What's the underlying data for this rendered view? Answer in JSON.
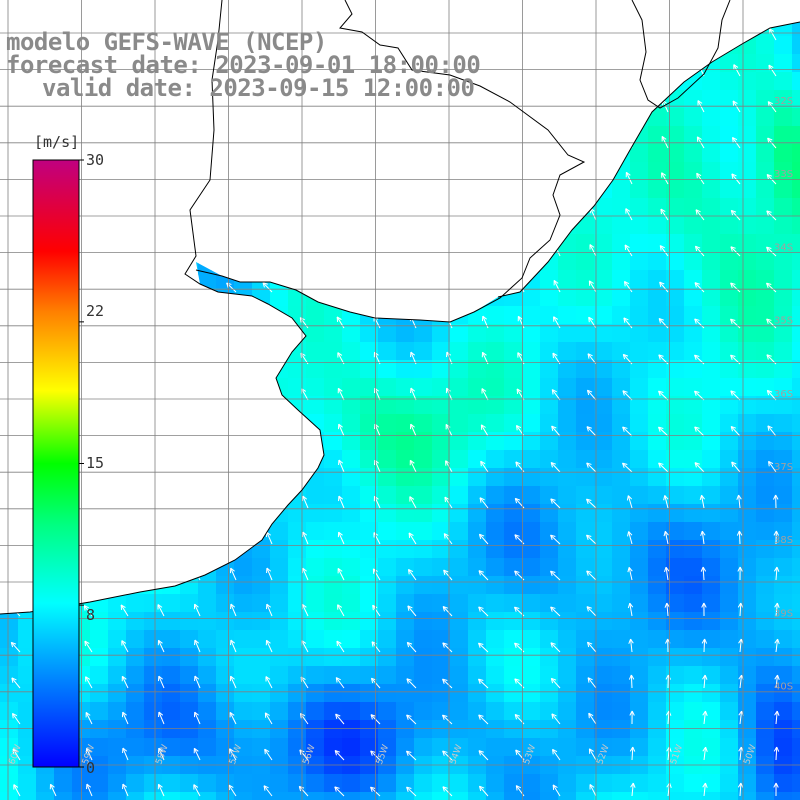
{
  "title": {
    "line1": "modelo GEFS-WAVE (NCEP)",
    "line2": "forecast date: 2023-09-01 18:00:00",
    "line3": "valid date: 2023-09-15 12:00:00"
  },
  "colorbar": {
    "unit": "[m/s]",
    "ticks": [
      "30",
      "22",
      "15",
      "8",
      "0"
    ],
    "tick_values": [
      30,
      22,
      15,
      8,
      0
    ],
    "min": 0,
    "max": 30,
    "colors": [
      "#0000ff",
      "#0080ff",
      "#00ffff",
      "#00ff00",
      "#ffff00",
      "#ff8000",
      "#ff0000",
      "#c00080"
    ]
  },
  "map": {
    "field": "wind speed with direction arrows",
    "lat_labels": [
      "32S",
      "33S",
      "34S",
      "35S",
      "36S",
      "37S",
      "38S",
      "39S",
      "40S"
    ],
    "lon_labels": [
      "60W",
      "59W",
      "58W",
      "57W",
      "56W",
      "55W",
      "54W",
      "53W",
      "52W",
      "51W",
      "50W"
    ],
    "land_color": "#ffffff",
    "grid_color": "#808080",
    "coast_color": "#000000",
    "arrow_color": "#ffffff",
    "prevailing_wind": "from south-east toward north-west"
  }
}
